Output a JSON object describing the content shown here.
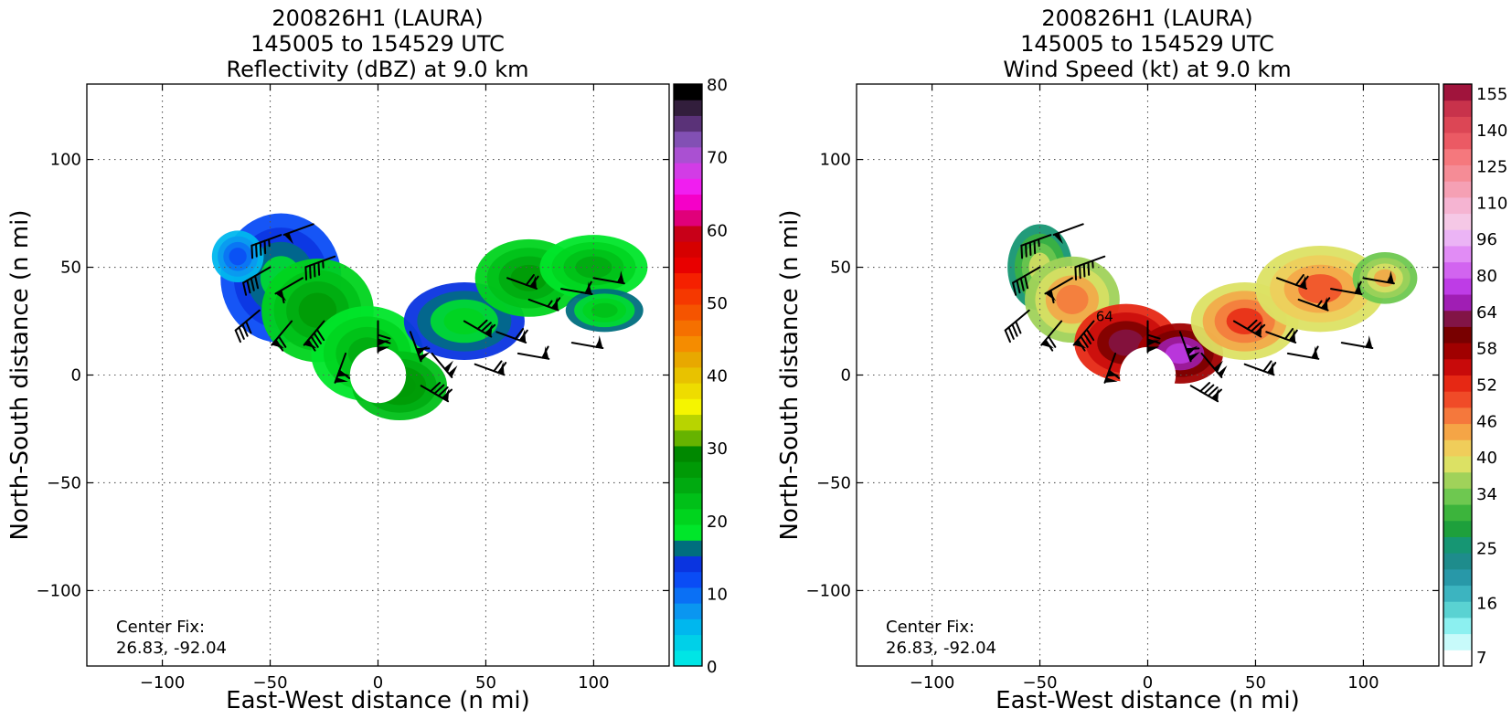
{
  "chart_data": [
    {
      "type": "heatmap",
      "title_lines": [
        "200826H1 (LAURA)",
        "145005 to 154529 UTC",
        "Reflectivity (dBZ) at 9.0 km"
      ],
      "xlabel": "East-West distance (n mi)",
      "ylabel": "North-South distance (n mi)",
      "xlim": [
        -135,
        135
      ],
      "ylim": [
        -135,
        135
      ],
      "xticks": [
        -100,
        -50,
        0,
        50,
        100
      ],
      "yticks": [
        -100,
        -50,
        0,
        50,
        100
      ],
      "xtick_labels": [
        "−100",
        "−50",
        "0",
        "50",
        "100"
      ],
      "ytick_labels": [
        "−100",
        "−50",
        "0",
        "50",
        "100"
      ],
      "grid": true,
      "annotation": [
        "Center Fix:",
        "26.83, -92.04"
      ],
      "colorbar": {
        "min": 0,
        "max": 80,
        "ticks": [
          0,
          10,
          20,
          30,
          40,
          50,
          60,
          70,
          80
        ],
        "tick_labels": [
          "0",
          "10",
          "20",
          "30",
          "40",
          "50",
          "60",
          "70",
          "80"
        ],
        "colors": [
          "#00e5e5",
          "#00d0e8",
          "#00b7ee",
          "#0a96f0",
          "#0a70f5",
          "#0a4cf5",
          "#0a34e0",
          "#006e7e",
          "#00e62a",
          "#00d41e",
          "#00c018",
          "#00aa10",
          "#009a06",
          "#008800",
          "#66b300",
          "#b8d400",
          "#f5f500",
          "#eedc00",
          "#e8c200",
          "#e8a800",
          "#f58c00",
          "#f57000",
          "#f55400",
          "#f53800",
          "#f52000",
          "#e80000",
          "#d60000",
          "#c80018",
          "#e0007a",
          "#f500c8",
          "#f01ef0",
          "#d23ce6",
          "#aa50d2",
          "#8250b4",
          "#5a3278",
          "#321e3c",
          "#000000"
        ]
      },
      "field": {
        "description_units": "dBZ",
        "blobs": [
          {
            "cx": -45,
            "cy": 45,
            "rx": 28,
            "ry": 30,
            "value": 12
          },
          {
            "cx": -28,
            "cy": 30,
            "rx": 26,
            "ry": 24,
            "value": 20
          },
          {
            "cx": -5,
            "cy": 10,
            "rx": 26,
            "ry": 22,
            "value": 18
          },
          {
            "cx": 10,
            "cy": -5,
            "rx": 22,
            "ry": 16,
            "value": 22
          },
          {
            "cx": 40,
            "cy": 25,
            "rx": 28,
            "ry": 18,
            "value": 14
          },
          {
            "cx": 70,
            "cy": 45,
            "rx": 25,
            "ry": 18,
            "value": 21
          },
          {
            "cx": 100,
            "cy": 50,
            "rx": 25,
            "ry": 15,
            "value": 19
          },
          {
            "cx": 105,
            "cy": 30,
            "rx": 18,
            "ry": 10,
            "value": 17
          },
          {
            "cx": -65,
            "cy": 55,
            "rx": 12,
            "ry": 12,
            "value": 6
          }
        ],
        "mask_center": [
          0,
          0
        ],
        "mask_inner_radius": 13
      },
      "wind_barbs": [
        {
          "x": -45,
          "y": 65,
          "speed": 45,
          "dir": 250
        },
        {
          "x": -30,
          "y": 70,
          "speed": 50,
          "dir": 250
        },
        {
          "x": -50,
          "y": 50,
          "speed": 40,
          "dir": 240
        },
        {
          "x": -35,
          "y": 45,
          "speed": 60,
          "dir": 240
        },
        {
          "x": -20,
          "y": 55,
          "speed": 45,
          "dir": 250
        },
        {
          "x": -55,
          "y": 30,
          "speed": 40,
          "dir": 230
        },
        {
          "x": -40,
          "y": 25,
          "speed": 70,
          "dir": 220
        },
        {
          "x": -25,
          "y": 25,
          "speed": 90,
          "dir": 220
        },
        {
          "x": -15,
          "y": 10,
          "speed": 110,
          "dir": 200
        },
        {
          "x": 0,
          "y": 25,
          "speed": 120,
          "dir": 180
        },
        {
          "x": 15,
          "y": 20,
          "speed": 110,
          "dir": 160
        },
        {
          "x": 25,
          "y": 10,
          "speed": 100,
          "dir": 140
        },
        {
          "x": 20,
          "y": -5,
          "speed": 90,
          "dir": 120
        },
        {
          "x": 40,
          "y": 25,
          "speed": 80,
          "dir": 120
        },
        {
          "x": 55,
          "y": 20,
          "speed": 70,
          "dir": 110
        },
        {
          "x": 70,
          "y": 35,
          "speed": 65,
          "dir": 110
        },
        {
          "x": 85,
          "y": 40,
          "speed": 60,
          "dir": 100
        },
        {
          "x": 100,
          "y": 45,
          "speed": 55,
          "dir": 100
        },
        {
          "x": 60,
          "y": 45,
          "speed": 70,
          "dir": 110
        },
        {
          "x": 45,
          "y": 5,
          "speed": 70,
          "dir": 110
        },
        {
          "x": 65,
          "y": 10,
          "speed": 60,
          "dir": 100
        },
        {
          "x": 90,
          "y": 15,
          "speed": 55,
          "dir": 100
        }
      ]
    },
    {
      "type": "heatmap",
      "title_lines": [
        "200826H1 (LAURA)",
        "145005 to 154529 UTC",
        "Wind Speed (kt) at 9.0 km"
      ],
      "xlabel": "East-West distance (n mi)",
      "ylabel": "North-South distance (n mi)",
      "xlim": [
        -135,
        135
      ],
      "ylim": [
        -135,
        135
      ],
      "xticks": [
        -100,
        -50,
        0,
        50,
        100
      ],
      "yticks": [
        -100,
        -50,
        0,
        50,
        100
      ],
      "xtick_labels": [
        "−100",
        "−50",
        "0",
        "50",
        "100"
      ],
      "ytick_labels": [
        "−100",
        "−50",
        "0",
        "50",
        "100"
      ],
      "grid": true,
      "annotation": [
        "Center Fix:",
        "26.83, -92.04"
      ],
      "contour_label": "64",
      "colorbar": {
        "tick_labels": [
          "7",
          "16",
          "25",
          "34",
          "40",
          "46",
          "52",
          "58",
          "64",
          "80",
          "96",
          "110",
          "125",
          "140",
          "155"
        ],
        "tick_indices": [
          0,
          3,
          6,
          9,
          11,
          13,
          15,
          17,
          19,
          21,
          23,
          25,
          27,
          29,
          31
        ],
        "colors": [
          "#ffffff",
          "#c8fafa",
          "#8cf0f0",
          "#5ad2d2",
          "#3cb4c0",
          "#2898a8",
          "#1e8c8c",
          "#169673",
          "#1ea03c",
          "#3cb43c",
          "#6ec850",
          "#a0d25a",
          "#dce164",
          "#f0cd5a",
          "#f5a546",
          "#f5783c",
          "#f04b28",
          "#e62814",
          "#c80a0a",
          "#a00000",
          "#780000",
          "#821446",
          "#a01eb4",
          "#be3ce6",
          "#d264f0",
          "#e18cf5",
          "#ebb4f5",
          "#f5c8e6",
          "#f5b4d2",
          "#f5a0b4",
          "#f58c96",
          "#f5787d",
          "#eb5a64",
          "#dc4655",
          "#c8324b",
          "#a0143c"
        ],
        "value_bounds": [
          7,
          160
        ]
      },
      "field": {
        "description_units": "kt",
        "blobs": [
          {
            "cx": -50,
            "cy": 50,
            "rx": 15,
            "ry": 20,
            "value": 40
          },
          {
            "cx": -35,
            "cy": 35,
            "rx": 22,
            "ry": 20,
            "value": 55
          },
          {
            "cx": -10,
            "cy": 15,
            "rx": 24,
            "ry": 18,
            "value": 80
          },
          {
            "cx": 15,
            "cy": 10,
            "rx": 20,
            "ry": 14,
            "value": 90
          },
          {
            "cx": 45,
            "cy": 25,
            "rx": 25,
            "ry": 18,
            "value": 62
          },
          {
            "cx": 80,
            "cy": 40,
            "rx": 30,
            "ry": 20,
            "value": 58
          },
          {
            "cx": 110,
            "cy": 45,
            "rx": 15,
            "ry": 12,
            "value": 50
          }
        ],
        "mask_center": [
          0,
          0
        ],
        "mask_inner_radius": 13
      },
      "wind_barbs": [
        {
          "x": -45,
          "y": 65,
          "speed": 45,
          "dir": 250
        },
        {
          "x": -30,
          "y": 70,
          "speed": 50,
          "dir": 250
        },
        {
          "x": -50,
          "y": 50,
          "speed": 40,
          "dir": 240
        },
        {
          "x": -35,
          "y": 45,
          "speed": 60,
          "dir": 240
        },
        {
          "x": -20,
          "y": 55,
          "speed": 45,
          "dir": 250
        },
        {
          "x": -55,
          "y": 30,
          "speed": 40,
          "dir": 230
        },
        {
          "x": -40,
          "y": 25,
          "speed": 70,
          "dir": 220
        },
        {
          "x": -25,
          "y": 25,
          "speed": 90,
          "dir": 220
        },
        {
          "x": -15,
          "y": 10,
          "speed": 110,
          "dir": 200
        },
        {
          "x": 0,
          "y": 25,
          "speed": 120,
          "dir": 180
        },
        {
          "x": 15,
          "y": 20,
          "speed": 110,
          "dir": 160
        },
        {
          "x": 25,
          "y": 10,
          "speed": 100,
          "dir": 140
        },
        {
          "x": 20,
          "y": -5,
          "speed": 90,
          "dir": 120
        },
        {
          "x": 40,
          "y": 25,
          "speed": 80,
          "dir": 120
        },
        {
          "x": 55,
          "y": 20,
          "speed": 70,
          "dir": 110
        },
        {
          "x": 70,
          "y": 35,
          "speed": 65,
          "dir": 110
        },
        {
          "x": 85,
          "y": 40,
          "speed": 60,
          "dir": 100
        },
        {
          "x": 100,
          "y": 45,
          "speed": 55,
          "dir": 100
        },
        {
          "x": 60,
          "y": 45,
          "speed": 70,
          "dir": 110
        },
        {
          "x": 45,
          "y": 5,
          "speed": 70,
          "dir": 110
        },
        {
          "x": 65,
          "y": 10,
          "speed": 60,
          "dir": 100
        },
        {
          "x": 90,
          "y": 15,
          "speed": 55,
          "dir": 100
        }
      ]
    }
  ]
}
